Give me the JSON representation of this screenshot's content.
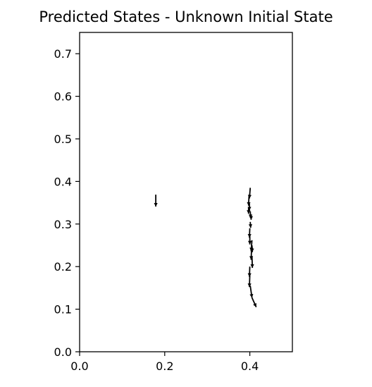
{
  "chart_data": {
    "type": "quiver",
    "title": "Predicted States - Unknown Initial State",
    "xlabel": "",
    "ylabel": "",
    "xlim": [
      0.0,
      0.5
    ],
    "ylim": [
      0.0,
      0.75
    ],
    "xticks": [
      "0.0",
      "0.2",
      "0.4"
    ],
    "yticks": [
      "0.0",
      "0.1",
      "0.2",
      "0.3",
      "0.4",
      "0.5",
      "0.6",
      "0.7"
    ],
    "grid": false,
    "color": "#000000",
    "arrows": [
      {
        "x": 0.179,
        "y": 0.369,
        "dx": 0.0,
        "dy": -0.028
      },
      {
        "x": 0.401,
        "y": 0.385,
        "dx": -0.002,
        "dy": -0.025
      },
      {
        "x": 0.398,
        "y": 0.365,
        "dx": -0.001,
        "dy": -0.022
      },
      {
        "x": 0.399,
        "y": 0.348,
        "dx": 0.0,
        "dy": -0.016
      },
      {
        "x": 0.397,
        "y": 0.338,
        "dx": 0.0,
        "dy": -0.014
      },
      {
        "x": 0.401,
        "y": 0.33,
        "dx": 0.001,
        "dy": -0.016
      },
      {
        "x": 0.403,
        "y": 0.322,
        "dx": 0.0,
        "dy": -0.012
      },
      {
        "x": 0.401,
        "y": 0.305,
        "dx": 0.001,
        "dy": -0.014
      },
      {
        "x": 0.4,
        "y": 0.29,
        "dx": -0.001,
        "dy": -0.022
      },
      {
        "x": 0.4,
        "y": 0.272,
        "dx": 0.0,
        "dy": -0.02
      },
      {
        "x": 0.405,
        "y": 0.262,
        "dx": -0.002,
        "dy": -0.026
      },
      {
        "x": 0.405,
        "y": 0.25,
        "dx": 0.001,
        "dy": -0.016
      },
      {
        "x": 0.404,
        "y": 0.24,
        "dx": -0.001,
        "dy": -0.024
      },
      {
        "x": 0.405,
        "y": 0.225,
        "dx": 0.001,
        "dy": -0.028
      },
      {
        "x": 0.4,
        "y": 0.2,
        "dx": -0.001,
        "dy": -0.024
      },
      {
        "x": 0.4,
        "y": 0.18,
        "dx": -0.001,
        "dy": -0.028
      },
      {
        "x": 0.401,
        "y": 0.155,
        "dx": 0.004,
        "dy": -0.028
      },
      {
        "x": 0.405,
        "y": 0.127,
        "dx": 0.01,
        "dy": -0.022
      }
    ]
  }
}
